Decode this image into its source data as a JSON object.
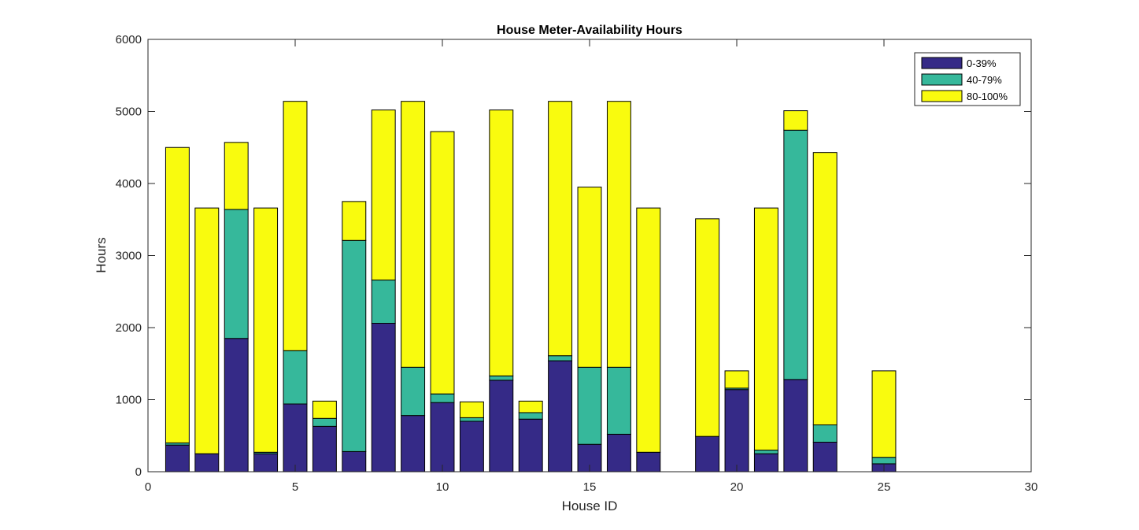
{
  "chart_data": {
    "type": "bar",
    "stacked": true,
    "title": "House Meter-Availability Hours",
    "xlabel": "House ID",
    "ylabel": "Hours",
    "xlim": [
      0,
      30
    ],
    "ylim": [
      0,
      6000
    ],
    "xticks": [
      0,
      5,
      10,
      15,
      20,
      25,
      30
    ],
    "yticks": [
      0,
      1000,
      2000,
      3000,
      4000,
      5000,
      6000
    ],
    "grid": false,
    "legend_position": "top-right",
    "x": [
      1,
      2,
      3,
      4,
      5,
      6,
      7,
      8,
      9,
      10,
      11,
      12,
      13,
      14,
      15,
      16,
      17,
      18,
      19,
      20,
      21,
      22,
      23,
      24,
      25
    ],
    "series": [
      {
        "name": "0-39%",
        "color": "#352a87",
        "values": [
          370,
          250,
          1850,
          250,
          940,
          630,
          280,
          2060,
          780,
          960,
          700,
          1270,
          730,
          1540,
          380,
          520,
          270,
          0,
          490,
          1140,
          250,
          1280,
          410,
          0,
          110
        ]
      },
      {
        "name": "40-79%",
        "color": "#36b89b",
        "values": [
          30,
          0,
          1790,
          20,
          740,
          110,
          2930,
          600,
          670,
          120,
          50,
          60,
          90,
          70,
          1070,
          930,
          0,
          0,
          0,
          20,
          50,
          3460,
          240,
          0,
          90
        ]
      },
      {
        "name": "80-100%",
        "color": "#f9fb0e",
        "values": [
          4100,
          3410,
          930,
          3390,
          3460,
          240,
          540,
          2360,
          3690,
          3640,
          220,
          3690,
          160,
          3530,
          2500,
          3690,
          3390,
          0,
          3020,
          240,
          3360,
          270,
          3780,
          0,
          1200
        ]
      }
    ]
  }
}
